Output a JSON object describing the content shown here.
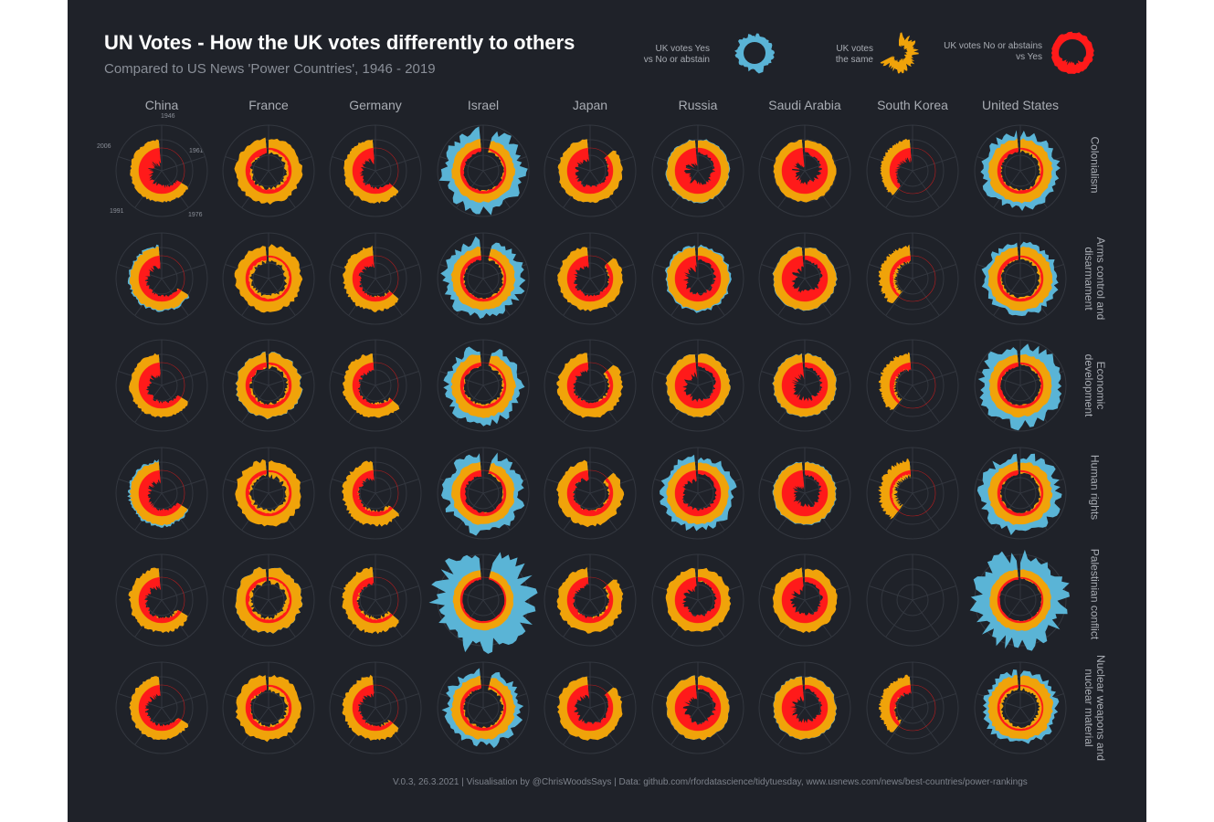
{
  "title": "UN Votes - How the UK votes differently to others",
  "subtitle": "Compared to US News 'Power Countries', 1946 - 2019",
  "legend": [
    {
      "label_line1": "UK votes Yes",
      "label_line2": "vs No or abstain",
      "color": "#5ab4d6"
    },
    {
      "label_line1": "UK votes",
      "label_line2": "the same",
      "color": "#f0a30a"
    },
    {
      "label_line1": "UK votes No or abstains",
      "label_line2": "vs Yes",
      "color": "#ff1a1a"
    }
  ],
  "year_labels": [
    "1946",
    "1961",
    "1976",
    "1991",
    "2006"
  ],
  "caption": "V.0.3, 26.3.2021  |  Visualisation by @ChrisWoodsSays  |  Data: github.com/rfordatascience/tidytuesday, www.usnews.com/news/best-countries/power-rankings",
  "chart_data": {
    "type": "area",
    "description_note": "Radial small multiples; angle = year (1946-2019 clockwise from top), radial extent = share of votes per category",
    "countries": [
      "China",
      "France",
      "Germany",
      "Israel",
      "Japan",
      "Russia",
      "Saudi Arabia",
      "South Korea",
      "United States"
    ],
    "issues": [
      "Colonialism",
      "Arms control and disarmament",
      "Economic development",
      "Human rights",
      "Palestinian conflict",
      "Nuclear weapons and nuclear material"
    ],
    "series": [
      {
        "name": "UK votes Yes vs No or abstain",
        "color": "#5ab4d6"
      },
      {
        "name": "UK votes the same",
        "color": "#f0a30a"
      },
      {
        "name": "UK votes No or abstains vs Yes",
        "color": "#ff1a1a"
      }
    ],
    "year_range": [
      1946,
      2019
    ],
    "coverage_start_year": [
      [
        1971,
        1946,
        1973,
        1949,
        1956,
        1946,
        1946,
        1991,
        1946
      ],
      [
        1971,
        1946,
        1973,
        1949,
        1956,
        1946,
        1946,
        1991,
        1946
      ],
      [
        1971,
        1946,
        1973,
        1949,
        1956,
        1946,
        1946,
        1991,
        1946
      ],
      [
        1971,
        1946,
        1973,
        1949,
        1956,
        1946,
        1946,
        1991,
        1946
      ],
      [
        1971,
        1946,
        1973,
        1949,
        1956,
        1946,
        1946,
        null,
        1946
      ],
      [
        1971,
        1946,
        1973,
        1949,
        1956,
        1946,
        1946,
        1991,
        1946
      ]
    ],
    "mix": [
      [
        [
          0.05,
          0.45,
          0.5
        ],
        [
          0.1,
          0.75,
          0.15
        ],
        [
          0.05,
          0.55,
          0.4
        ],
        [
          0.45,
          0.45,
          0.1
        ],
        [
          0.1,
          0.55,
          0.35
        ],
        [
          0.1,
          0.4,
          0.5
        ],
        [
          0.05,
          0.4,
          0.55
        ],
        [
          0.05,
          0.55,
          0.4
        ],
        [
          0.35,
          0.55,
          0.1
        ]
      ],
      [
        [
          0.15,
          0.5,
          0.35
        ],
        [
          0.1,
          0.8,
          0.1
        ],
        [
          0.05,
          0.65,
          0.3
        ],
        [
          0.4,
          0.5,
          0.1
        ],
        [
          0.1,
          0.6,
          0.3
        ],
        [
          0.15,
          0.45,
          0.4
        ],
        [
          0.1,
          0.45,
          0.45
        ],
        [
          0.05,
          0.8,
          0.15
        ],
        [
          0.3,
          0.6,
          0.1
        ]
      ],
      [
        [
          0.05,
          0.55,
          0.4
        ],
        [
          0.15,
          0.7,
          0.15
        ],
        [
          0.1,
          0.65,
          0.25
        ],
        [
          0.35,
          0.55,
          0.1
        ],
        [
          0.1,
          0.65,
          0.25
        ],
        [
          0.1,
          0.5,
          0.4
        ],
        [
          0.1,
          0.45,
          0.45
        ],
        [
          0.05,
          0.75,
          0.2
        ],
        [
          0.45,
          0.45,
          0.1
        ]
      ],
      [
        [
          0.15,
          0.45,
          0.4
        ],
        [
          0.1,
          0.8,
          0.1
        ],
        [
          0.05,
          0.7,
          0.25
        ],
        [
          0.4,
          0.45,
          0.15
        ],
        [
          0.05,
          0.7,
          0.25
        ],
        [
          0.3,
          0.4,
          0.3
        ],
        [
          0.1,
          0.4,
          0.5
        ],
        [
          0.05,
          0.85,
          0.1
        ],
        [
          0.4,
          0.5,
          0.1
        ]
      ],
      [
        [
          0.05,
          0.65,
          0.3
        ],
        [
          0.15,
          0.75,
          0.1
        ],
        [
          0.05,
          0.75,
          0.2
        ],
        [
          0.75,
          0.2,
          0.05
        ],
        [
          0.05,
          0.7,
          0.25
        ],
        [
          0.05,
          0.6,
          0.35
        ],
        [
          0.05,
          0.55,
          0.4
        ],
        [
          0.0,
          0.0,
          0.0
        ],
        [
          0.65,
          0.3,
          0.05
        ]
      ],
      [
        [
          0.1,
          0.55,
          0.35
        ],
        [
          0.1,
          0.75,
          0.15
        ],
        [
          0.05,
          0.65,
          0.3
        ],
        [
          0.35,
          0.55,
          0.1
        ],
        [
          0.05,
          0.6,
          0.35
        ],
        [
          0.1,
          0.5,
          0.4
        ],
        [
          0.1,
          0.45,
          0.45
        ],
        [
          0.05,
          0.7,
          0.25
        ],
        [
          0.3,
          0.65,
          0.05
        ]
      ]
    ]
  }
}
